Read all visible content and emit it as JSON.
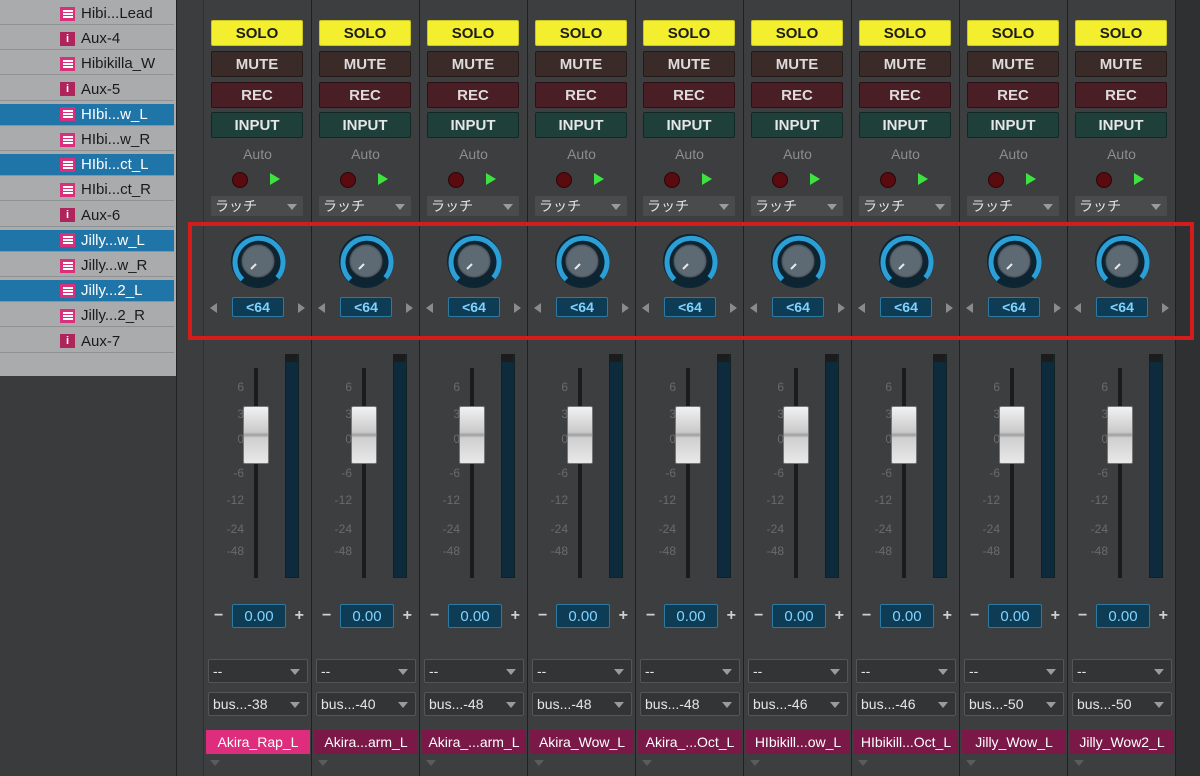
{
  "track_list": {
    "items": [
      {
        "name": "Hibi...Lead",
        "kind": "audio",
        "selected": false
      },
      {
        "name": "Aux-4",
        "kind": "aux",
        "selected": false
      },
      {
        "name": "Hibikilla_W",
        "kind": "audio",
        "selected": false
      },
      {
        "name": "Aux-5",
        "kind": "aux",
        "selected": false
      },
      {
        "name": "HIbi...w_L",
        "kind": "audio",
        "selected": true
      },
      {
        "name": "HIbi...w_R",
        "kind": "audio",
        "selected": false
      },
      {
        "name": "HIbi...ct_L",
        "kind": "audio",
        "selected": true
      },
      {
        "name": "HIbi...ct_R",
        "kind": "audio",
        "selected": false
      },
      {
        "name": "Aux-6",
        "kind": "aux",
        "selected": false
      },
      {
        "name": "Jilly...w_L",
        "kind": "audio",
        "selected": true
      },
      {
        "name": "Jilly...w_R",
        "kind": "audio",
        "selected": false
      },
      {
        "name": "Jilly...2_L",
        "kind": "audio",
        "selected": true
      },
      {
        "name": "Jilly...2_R",
        "kind": "audio",
        "selected": false
      },
      {
        "name": "Aux-7",
        "kind": "aux",
        "selected": false
      }
    ]
  },
  "strip_labels": {
    "solo": "SOLO",
    "mute": "MUTE",
    "rec": "REC",
    "input": "INPUT",
    "auto": "Auto"
  },
  "fader_scale": [
    "6",
    "3",
    "0",
    "-6",
    "-12",
    "-24",
    "-48"
  ],
  "icons": {
    "record": "record-dot-icon",
    "play": "play-triangle-icon",
    "pan_left": "pan-left-arrow-icon",
    "pan_right": "pan-right-arrow-icon"
  },
  "colors": {
    "solo": "#f3ef2e",
    "accent_blue": "#2b9fd6",
    "name_active": "#de2d7c",
    "name_default": "#7a1848",
    "highlight": "#d31d1d"
  },
  "strips": [
    {
      "automation": "ラッチ",
      "pan": "<64",
      "volume": "0.00",
      "send": "--",
      "bus": "bus...-38",
      "name": "Akira_Rap_L",
      "active": true
    },
    {
      "automation": "ラッチ",
      "pan": "<64",
      "volume": "0.00",
      "send": "--",
      "bus": "bus...-40",
      "name": "Akira...arm_L",
      "active": false
    },
    {
      "automation": "ラッチ",
      "pan": "<64",
      "volume": "0.00",
      "send": "--",
      "bus": "bus...-48",
      "name": "Akira_...arm_L",
      "active": false
    },
    {
      "automation": "ラッチ",
      "pan": "<64",
      "volume": "0.00",
      "send": "--",
      "bus": "bus...-48",
      "name": "Akira_Wow_L",
      "active": false
    },
    {
      "automation": "ラッチ",
      "pan": "<64",
      "volume": "0.00",
      "send": "--",
      "bus": "bus...-48",
      "name": "Akira_...Oct_L",
      "active": false
    },
    {
      "automation": "ラッチ",
      "pan": "<64",
      "volume": "0.00",
      "send": "--",
      "bus": "bus...-46",
      "name": "HIbikill...ow_L",
      "active": false
    },
    {
      "automation": "ラッチ",
      "pan": "<64",
      "volume": "0.00",
      "send": "--",
      "bus": "bus...-46",
      "name": "HIbikill...Oct_L",
      "active": false
    },
    {
      "automation": "ラッチ",
      "pan": "<64",
      "volume": "0.00",
      "send": "--",
      "bus": "bus...-50",
      "name": "Jilly_Wow_L",
      "active": false
    },
    {
      "automation": "ラッチ",
      "pan": "<64",
      "volume": "0.00",
      "send": "--",
      "bus": "bus...-50",
      "name": "Jilly_Wow2_L",
      "active": false
    }
  ]
}
